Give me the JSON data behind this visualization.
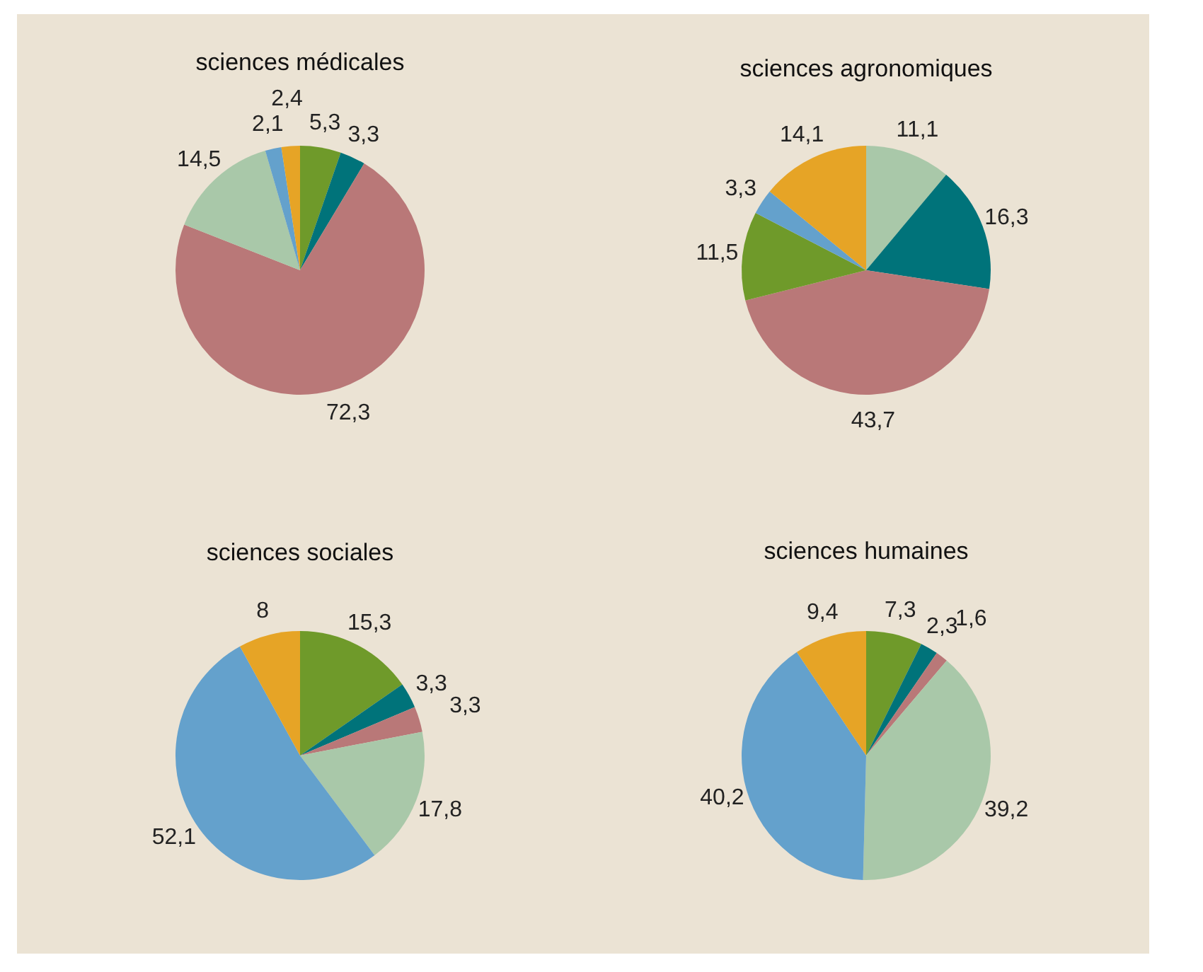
{
  "chart_data": [
    {
      "type": "pie",
      "title": "sciences médicales",
      "categories": [
        null,
        null,
        null,
        null,
        null,
        null
      ],
      "values": [
        5.3,
        3.3,
        72.3,
        14.5,
        2.1,
        2.4
      ],
      "value_labels": [
        "5,3",
        "3,3",
        "72,3",
        "14,5",
        "2,1",
        "2,4"
      ],
      "colors": [
        "#6f9a2a",
        "#00737a",
        "#b97878",
        "#a9c8a9",
        "#64a1cc",
        "#e6a426"
      ]
    },
    {
      "type": "pie",
      "title": "sciences agronomiques",
      "categories": [
        null,
        null,
        null,
        null,
        null,
        null
      ],
      "values": [
        11.1,
        16.3,
        43.7,
        11.5,
        3.3,
        14.1
      ],
      "value_labels": [
        "11,1",
        "16,3",
        "43,7",
        "11,5",
        "3,3",
        "14,1"
      ],
      "colors": [
        "#a9c8a9",
        "#00737a",
        "#b97878",
        "#6f9a2a",
        "#64a1cc",
        "#e6a426"
      ]
    },
    {
      "type": "pie",
      "title": "sciences sociales",
      "categories": [
        null,
        null,
        null,
        null,
        null,
        null
      ],
      "values": [
        15.3,
        3.3,
        3.3,
        17.8,
        52.1,
        8
      ],
      "value_labels": [
        "15,3",
        "3,3",
        "3,3",
        "17,8",
        "52,1",
        "8"
      ],
      "colors": [
        "#6f9a2a",
        "#00737a",
        "#b97878",
        "#a9c8a9",
        "#64a1cc",
        "#e6a426"
      ]
    },
    {
      "type": "pie",
      "title": "sciences humaines",
      "categories": [
        null,
        null,
        null,
        null,
        null,
        null
      ],
      "values": [
        7.3,
        2.3,
        1.6,
        39.2,
        40.2,
        9.4
      ],
      "value_labels": [
        "7,3",
        "2,3",
        "1,6",
        "39,2",
        "40,2",
        "9,4"
      ],
      "colors": [
        "#6f9a2a",
        "#00737a",
        "#b97878",
        "#a9c8a9",
        "#64a1cc",
        "#e6a426"
      ]
    }
  ]
}
